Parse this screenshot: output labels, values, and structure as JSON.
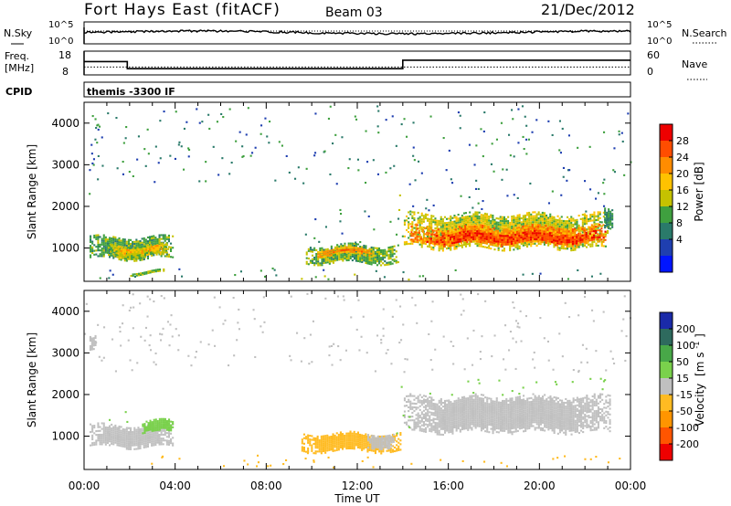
{
  "header": {
    "title": "Fort Hays East (fitACF)",
    "beam": "Beam 03",
    "date": "21/Dec/2012"
  },
  "nsky_panel": {
    "left_label": "N.Sky",
    "right_label": "N.Search",
    "y_ticks_left": [
      "10^5",
      "10^0"
    ],
    "y_ticks_right": [
      "10^5",
      "10^0"
    ]
  },
  "freq_panel": {
    "left_label_1": "Freq.",
    "left_label_2": "[MHz]",
    "y_ticks_left": [
      "18",
      "8"
    ],
    "y_ticks_right": [
      "60",
      "0"
    ],
    "right_label": "Nave",
    "segments": [
      {
        "start_hour": 0.0,
        "end_hour": 1.9,
        "freq_mhz": 13.6
      },
      {
        "start_hour": 1.9,
        "end_hour": 14.0,
        "freq_mhz": 10.6
      },
      {
        "start_hour": 14.0,
        "end_hour": 24.0,
        "freq_mhz": 14.2
      }
    ],
    "nave_level": 20
  },
  "cpid_panel": {
    "label": "CPID",
    "program": "themis -3300 IF"
  },
  "chart_data": [
    {
      "type": "heatmap",
      "name": "power",
      "ylabel": "Slant Range [km]",
      "y_ticks": [
        "4000",
        "3000",
        "2000",
        "1000"
      ],
      "ylim": [
        200,
        4500
      ],
      "colorbar": {
        "label": "Power [dB]",
        "ticks": [
          "28",
          "24",
          "20",
          "16",
          "12",
          "8",
          "4"
        ],
        "colors": [
          "#ee0000",
          "#ff4d00",
          "#ff8c00",
          "#ffc200",
          "#c5c200",
          "#3fa03f",
          "#2a7a6a",
          "#1f3fb0",
          "#0015ff"
        ]
      },
      "blobs": [
        {
          "t0": 0.2,
          "t1": 3.9,
          "r0": 700,
          "r1": 1250,
          "v": 10
        },
        {
          "t0": 1.0,
          "t1": 3.7,
          "r0": 750,
          "r1": 1050,
          "v": 14
        },
        {
          "t0": 1.3,
          "t1": 3.4,
          "r0": 870,
          "r1": 1000,
          "v": 18
        },
        {
          "t0": 1.9,
          "t1": 3.5,
          "r0": 350,
          "r1": 420,
          "v": 12
        },
        {
          "t0": 9.7,
          "t1": 13.8,
          "r0": 600,
          "r1": 1050,
          "v": 11
        },
        {
          "t0": 10.2,
          "t1": 12.7,
          "r0": 800,
          "r1": 960,
          "v": 20
        },
        {
          "t0": 10.8,
          "t1": 12.2,
          "r0": 850,
          "r1": 900,
          "v": 25
        },
        {
          "t0": 14.0,
          "t1": 23.0,
          "r0": 950,
          "r1": 1800,
          "v": 14
        },
        {
          "t0": 14.3,
          "t1": 22.9,
          "r0": 1050,
          "r1": 1500,
          "v": 22
        },
        {
          "t0": 15.0,
          "t1": 22.9,
          "r0": 1100,
          "r1": 1350,
          "v": 27
        },
        {
          "t0": 22.8,
          "t1": 23.2,
          "r0": 1400,
          "r1": 1900,
          "v": 8
        }
      ],
      "sparse": [
        {
          "t0": 0.3,
          "t1": 1.0,
          "r0": 2800,
          "r1": 3600,
          "v": 6
        },
        {
          "t0": 0.0,
          "t1": 0.4,
          "r0": 1900,
          "r1": 2300,
          "v": 9
        },
        {
          "t0": 0.0,
          "t1": 24.0,
          "r0": 220,
          "r1": 500,
          "v": 8
        },
        {
          "t0": 6.5,
          "t1": 9.5,
          "r0": 250,
          "r1": 450,
          "v": 9
        },
        {
          "t0": 9.5,
          "t1": 13.8,
          "r0": 1100,
          "r1": 1900,
          "v": 7
        },
        {
          "t0": 14.0,
          "t1": 23.0,
          "r0": 1800,
          "r1": 2400,
          "v": 5
        },
        {
          "t0": 13.6,
          "t1": 14.4,
          "r0": 1000,
          "r1": 2400,
          "v": 12
        },
        {
          "t0": 0.0,
          "t1": 24.0,
          "r0": 2500,
          "r1": 4400,
          "v": 6
        }
      ]
    },
    {
      "type": "heatmap",
      "name": "velocity",
      "ylabel": "Slant Range [km]",
      "y_ticks": [
        "4000",
        "3000",
        "2000",
        "1000"
      ],
      "ylim": [
        200,
        4500
      ],
      "colorbar": {
        "label_main": "Velocity",
        "label_units": "[m s",
        "label_exp": "-1",
        "label_close": "]",
        "ticks": [
          "200",
          "100",
          "50",
          "15",
          "-15",
          "-50",
          "-100",
          "-200"
        ],
        "colors": [
          "#1a2aa8",
          "#2e6a5e",
          "#48a848",
          "#7ad14c",
          "#c0c0c0",
          "#ffbb22",
          "#ff9500",
          "#ff5500",
          "#ee0000"
        ]
      },
      "blobs": [
        {
          "t0": 0.2,
          "t1": 3.9,
          "r0": 700,
          "r1": 1250,
          "v": 0
        },
        {
          "t0": 2.5,
          "t1": 3.9,
          "r0": 1050,
          "r1": 1350,
          "v": 20
        },
        {
          "t0": 9.5,
          "t1": 13.9,
          "r0": 600,
          "r1": 1050,
          "v": -40
        },
        {
          "t0": 12.4,
          "t1": 13.6,
          "r0": 700,
          "r1": 1050,
          "v": 0
        },
        {
          "t0": 14.0,
          "t1": 23.1,
          "r0": 1050,
          "r1": 1950,
          "v": 0
        },
        {
          "t0": 0.2,
          "t1": 0.5,
          "r0": 3000,
          "r1": 3350,
          "v": 0
        }
      ],
      "sparse": [
        {
          "t0": 0.0,
          "t1": 24.0,
          "r0": 220,
          "r1": 500,
          "v": -35
        },
        {
          "t0": 6.0,
          "t1": 10.0,
          "r0": 250,
          "r1": 600,
          "v": -30
        },
        {
          "t0": 13.6,
          "t1": 14.4,
          "r0": 1000,
          "r1": 2400,
          "v": 40
        },
        {
          "t0": 14.0,
          "t1": 23.0,
          "r0": 1900,
          "r1": 2400,
          "v": 30
        },
        {
          "t0": 0.5,
          "t1": 2.2,
          "r0": 1200,
          "r1": 1600,
          "v": 30
        },
        {
          "t0": 0.0,
          "t1": 24.0,
          "r0": 2500,
          "r1": 4400,
          "v": 5
        }
      ]
    }
  ],
  "x_axis": {
    "ticks": [
      "00:00",
      "04:00",
      "08:00",
      "12:00",
      "16:00",
      "20:00",
      "00:00"
    ],
    "label": "Time UT",
    "xlim_hours": [
      0,
      24
    ]
  }
}
